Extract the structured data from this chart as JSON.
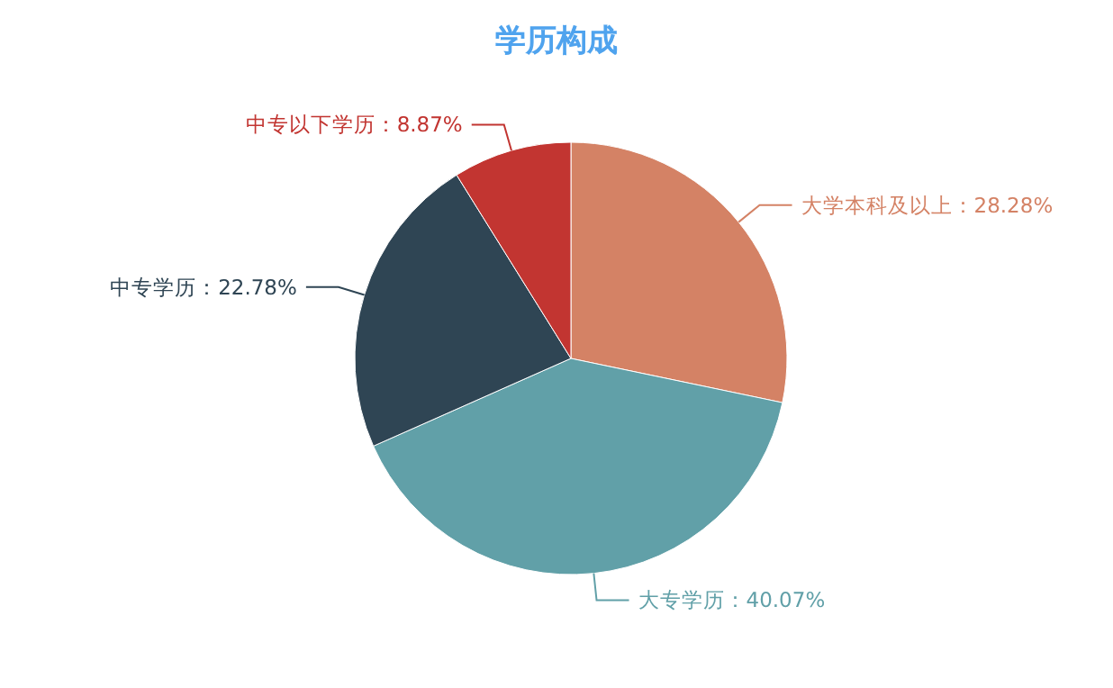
{
  "chart_data": {
    "type": "pie",
    "title": "学历构成",
    "categories": [
      "大学本科及以上",
      "大专学历",
      "中专学历",
      "中专以下学历"
    ],
    "values": [
      28.28,
      40.07,
      22.78,
      8.87
    ],
    "colors": [
      "#d48265",
      "#61a0a8",
      "#2f4554",
      "#c23531"
    ],
    "value_labels": [
      "28.28%",
      "40.07%",
      "22.78%",
      "8.87%"
    ]
  }
}
